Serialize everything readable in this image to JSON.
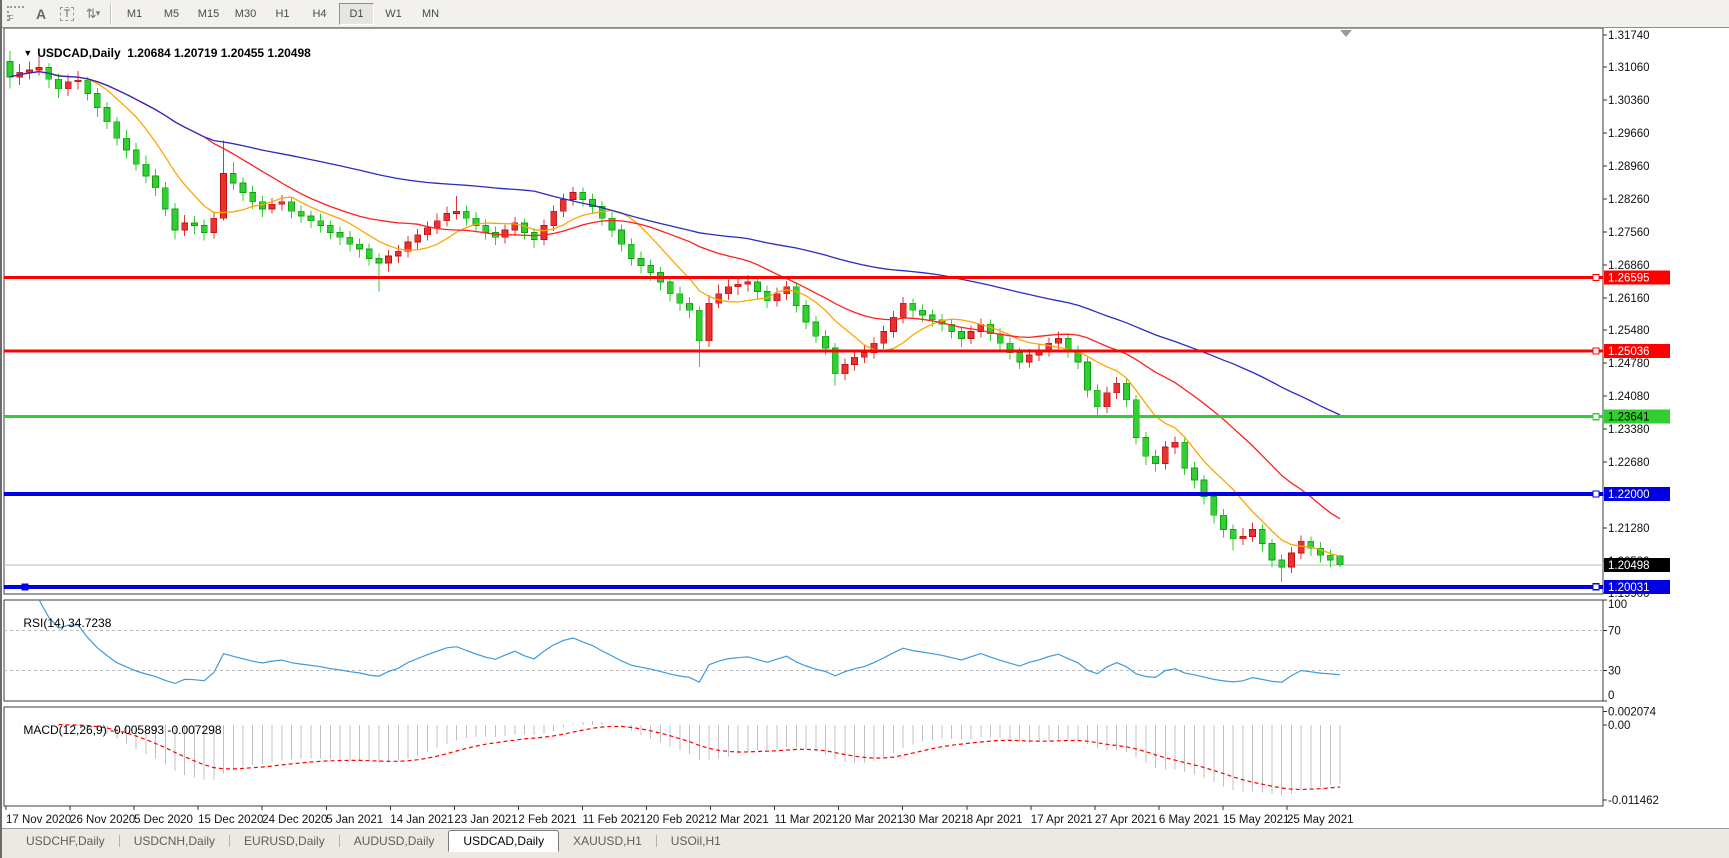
{
  "toolbar": {
    "icons": [
      "dotted-grid",
      "text-a",
      "text-label",
      "cursor-arrows"
    ],
    "grid_letter": "F",
    "a_letter": "A",
    "t_letter": "T",
    "arrows_glyph": "⇅",
    "caret_glyph": "▾",
    "timeframes": [
      "M1",
      "M5",
      "M15",
      "M30",
      "H1",
      "H4",
      "D1",
      "W1",
      "MN"
    ],
    "active_timeframe": "D1"
  },
  "header": {
    "dropdown_glyph": "▼",
    "symbol": "USDCAD,Daily",
    "ohlc": "1.20684 1.20719 1.20455 1.20498"
  },
  "rsi_panel": {
    "label_name": "RSI(14)",
    "label_value": "34.7238",
    "ticks": [
      100,
      70,
      30,
      0
    ],
    "levels": [
      70,
      30
    ],
    "line_color": "#3e9bdc"
  },
  "macd_panel": {
    "label_name": "MACD(12,26,9)",
    "label_values": "-0.005893 -0.007298",
    "ticks": [
      {
        "label": "0.002074",
        "value": 0.002074
      },
      {
        "label": "0.00",
        "value": 0.0
      },
      {
        "label": "-0.011462",
        "value": -0.011462
      }
    ],
    "histogram_color": "#c0c0c0",
    "signal_color": "#ff0000"
  },
  "price_axis": {
    "ticks": [
      "1.31740",
      "1.31060",
      "1.30360",
      "1.29660",
      "1.28960",
      "1.28260",
      "1.27560",
      "1.26860",
      "1.26160",
      "1.25480",
      "1.24780",
      "1.24080",
      "1.23380",
      "1.22680",
      "1.21980",
      "1.21280",
      "1.20580",
      "1.19900"
    ]
  },
  "time_axis": {
    "labels": [
      "17 Nov 2020",
      "26 Nov 2020",
      "5 Dec 2020",
      "15 Dec 2020",
      "24 Dec 2020",
      "5 Jan 2021",
      "14 Jan 2021",
      "23 Jan 2021",
      "2 Feb 2021",
      "11 Feb 2021",
      "20 Feb 2021",
      "2 Mar 2021",
      "11 Mar 2021",
      "20 Mar 2021",
      "30 Mar 2021",
      "8 Apr 2021",
      "17 Apr 2021",
      "27 Apr 2021",
      "6 May 2021",
      "15 May 2021",
      "25 May 2021"
    ]
  },
  "tabs": {
    "items": [
      "USDCHF,Daily",
      "USDCNH,Daily",
      "EURUSD,Daily",
      "AUDUSD,Daily",
      "USDCAD,Daily",
      "XAUUSD,H1",
      "USOil,H1"
    ],
    "active_index": 4
  },
  "chart_data": {
    "type": "candlestick",
    "symbol": "USDCAD",
    "timeframe": "Daily",
    "current_ohlc": {
      "open": 1.20684,
      "high": 1.20719,
      "low": 1.20455,
      "close": 1.20498
    },
    "y_axis": {
      "max": 1.3174,
      "min": 1.199,
      "tick_step": 0.007
    },
    "colors": {
      "bull_up": "#e63232",
      "bear_down": "#33ce33",
      "bull_stroke": "#c01010",
      "bear_stroke": "#0fa00f"
    },
    "moving_averages": [
      {
        "name": "ma-fast",
        "type": "sma",
        "period": 8,
        "color": "#ffa500"
      },
      {
        "name": "ma-mid",
        "type": "sma",
        "period": 21,
        "color": "#ff2020"
      },
      {
        "name": "ma-slow",
        "type": "sma",
        "period": 55,
        "color": "#2b2bc0"
      }
    ],
    "horizontal_lines": [
      {
        "label": "1.26595",
        "price": 1.26595,
        "color": "#ff0000",
        "width": 3,
        "text_color": "#ffffff"
      },
      {
        "label": "1.25036",
        "price": 1.25036,
        "color": "#ff0000",
        "width": 3,
        "text_color": "#ffffff"
      },
      {
        "label": "1.23641",
        "price": 1.23641,
        "color": "#32cd32",
        "width": 3,
        "text_color": "#000000"
      },
      {
        "label": "1.22000",
        "price": 1.22,
        "color": "#0000e0",
        "width": 4,
        "text_color": "#ffffff"
      },
      {
        "label": "1.20031",
        "price": 1.20031,
        "color": "#0000e0",
        "width": 4,
        "text_color": "#ffffff",
        "left_anchor": true
      }
    ],
    "bid_line": {
      "label": "1.20498",
      "price": 1.20498,
      "line_color": "#b8b8b8",
      "chip_bg": "#000000",
      "text_color": "#ffffff"
    },
    "rsi": {
      "period": 14,
      "current": 34.7238
    },
    "macd": {
      "fast": 12,
      "slow": 26,
      "signal": 9,
      "main": -0.005893,
      "signal_value": -0.007298
    },
    "candles": [
      [
        1.3118,
        1.314,
        1.306,
        1.3085
      ],
      [
        1.3085,
        1.3112,
        1.3068,
        1.3095
      ],
      [
        1.3095,
        1.3118,
        1.308,
        1.31
      ],
      [
        1.31,
        1.3128,
        1.3088,
        1.3105
      ],
      [
        1.3105,
        1.3115,
        1.3062,
        1.308
      ],
      [
        1.308,
        1.3092,
        1.304,
        1.306
      ],
      [
        1.306,
        1.309,
        1.3045,
        1.3075
      ],
      [
        1.3075,
        1.3098,
        1.3058,
        1.3078
      ],
      [
        1.3078,
        1.3085,
        1.3035,
        1.305
      ],
      [
        1.305,
        1.3062,
        1.3,
        1.302
      ],
      [
        1.302,
        1.3032,
        1.2975,
        1.299
      ],
      [
        1.299,
        1.3,
        1.294,
        1.2955
      ],
      [
        1.2955,
        1.2972,
        1.2912,
        1.293
      ],
      [
        1.293,
        1.2945,
        1.2885,
        1.29
      ],
      [
        1.29,
        1.2918,
        1.286,
        1.2875
      ],
      [
        1.2875,
        1.289,
        1.2832,
        1.285
      ],
      [
        1.285,
        1.2862,
        1.279,
        1.2805
      ],
      [
        1.2805,
        1.2818,
        1.274,
        1.276
      ],
      [
        1.276,
        1.2792,
        1.2748,
        1.2775
      ],
      [
        1.2775,
        1.279,
        1.2752,
        1.277
      ],
      [
        1.277,
        1.2782,
        1.2738,
        1.2755
      ],
      [
        1.2755,
        1.28,
        1.2742,
        1.2785
      ],
      [
        1.2785,
        1.295,
        1.278,
        1.288
      ],
      [
        1.288,
        1.2905,
        1.2845,
        1.286
      ],
      [
        1.286,
        1.2872,
        1.2822,
        1.284
      ],
      [
        1.284,
        1.2855,
        1.2805,
        1.282
      ],
      [
        1.282,
        1.2832,
        1.2788,
        1.2805
      ],
      [
        1.2805,
        1.2828,
        1.2795,
        1.2815
      ],
      [
        1.2815,
        1.2835,
        1.2802,
        1.282
      ],
      [
        1.282,
        1.283,
        1.2785,
        1.28
      ],
      [
        1.28,
        1.2812,
        1.2775,
        1.279
      ],
      [
        1.279,
        1.2802,
        1.2765,
        1.278
      ],
      [
        1.278,
        1.2795,
        1.2755,
        1.277
      ],
      [
        1.277,
        1.278,
        1.274,
        1.2755
      ],
      [
        1.2755,
        1.2768,
        1.2728,
        1.2745
      ],
      [
        1.2745,
        1.2758,
        1.2715,
        1.273
      ],
      [
        1.273,
        1.2742,
        1.2702,
        1.272
      ],
      [
        1.272,
        1.2732,
        1.2685,
        1.27
      ],
      [
        1.27,
        1.271,
        1.263,
        1.269
      ],
      [
        1.269,
        1.2718,
        1.2672,
        1.2705
      ],
      [
        1.2705,
        1.2728,
        1.269,
        1.2715
      ],
      [
        1.2715,
        1.2748,
        1.2702,
        1.2735
      ],
      [
        1.2735,
        1.2762,
        1.272,
        1.275
      ],
      [
        1.275,
        1.2778,
        1.2738,
        1.2765
      ],
      [
        1.2765,
        1.2795,
        1.2752,
        1.278
      ],
      [
        1.278,
        1.281,
        1.2768,
        1.2795
      ],
      [
        1.2795,
        1.2832,
        1.2782,
        1.28
      ],
      [
        1.28,
        1.2812,
        1.277,
        1.2785
      ],
      [
        1.2785,
        1.2798,
        1.2755,
        1.277
      ],
      [
        1.277,
        1.2782,
        1.274,
        1.2755
      ],
      [
        1.2755,
        1.2768,
        1.2728,
        1.2745
      ],
      [
        1.2745,
        1.2772,
        1.2732,
        1.276
      ],
      [
        1.276,
        1.2788,
        1.2748,
        1.2775
      ],
      [
        1.2775,
        1.2785,
        1.274,
        1.2755
      ],
      [
        1.2755,
        1.2765,
        1.2722,
        1.274
      ],
      [
        1.274,
        1.2782,
        1.2728,
        1.277
      ],
      [
        1.277,
        1.2812,
        1.2758,
        1.28
      ],
      [
        1.28,
        1.2838,
        1.2788,
        1.2825
      ],
      [
        1.2825,
        1.2852,
        1.2812,
        1.284
      ],
      [
        1.284,
        1.285,
        1.281,
        1.2825
      ],
      [
        1.2825,
        1.2838,
        1.2795,
        1.281
      ],
      [
        1.281,
        1.2822,
        1.277,
        1.2785
      ],
      [
        1.2785,
        1.2798,
        1.2745,
        1.276
      ],
      [
        1.276,
        1.2772,
        1.2715,
        1.273
      ],
      [
        1.273,
        1.2742,
        1.2685,
        1.27
      ],
      [
        1.27,
        1.2715,
        1.2668,
        1.2685
      ],
      [
        1.2685,
        1.2698,
        1.2652,
        1.267
      ],
      [
        1.267,
        1.2682,
        1.2632,
        1.265
      ],
      [
        1.265,
        1.2662,
        1.2608,
        1.2625
      ],
      [
        1.2625,
        1.264,
        1.2588,
        1.2605
      ],
      [
        1.2605,
        1.2618,
        1.2572,
        1.259
      ],
      [
        1.259,
        1.2598,
        1.247,
        1.2525
      ],
      [
        1.2525,
        1.2622,
        1.2512,
        1.2605
      ],
      [
        1.2605,
        1.2645,
        1.2595,
        1.2625
      ],
      [
        1.2625,
        1.2655,
        1.2612,
        1.264
      ],
      [
        1.264,
        1.2658,
        1.2622,
        1.2645
      ],
      [
        1.2645,
        1.2665,
        1.263,
        1.265
      ],
      [
        1.265,
        1.266,
        1.2615,
        1.263
      ],
      [
        1.263,
        1.2642,
        1.2595,
        1.261
      ],
      [
        1.261,
        1.2638,
        1.2598,
        1.2625
      ],
      [
        1.2625,
        1.2652,
        1.2612,
        1.264
      ],
      [
        1.264,
        1.265,
        1.2585,
        1.26
      ],
      [
        1.26,
        1.2612,
        1.255,
        1.2565
      ],
      [
        1.2565,
        1.2578,
        1.252,
        1.2535
      ],
      [
        1.2535,
        1.2548,
        1.2495,
        1.251
      ],
      [
        1.251,
        1.252,
        1.243,
        1.2455
      ],
      [
        1.2455,
        1.2488,
        1.2442,
        1.2475
      ],
      [
        1.2475,
        1.2502,
        1.2462,
        1.249
      ],
      [
        1.249,
        1.2515,
        1.2478,
        1.25
      ],
      [
        1.25,
        1.2532,
        1.2488,
        1.252
      ],
      [
        1.252,
        1.2558,
        1.2508,
        1.2545
      ],
      [
        1.2545,
        1.2588,
        1.2532,
        1.2575
      ],
      [
        1.2575,
        1.2618,
        1.2562,
        1.2605
      ],
      [
        1.2605,
        1.2615,
        1.2575,
        1.259
      ],
      [
        1.259,
        1.2602,
        1.2565,
        1.258
      ],
      [
        1.258,
        1.2592,
        1.2555,
        1.257
      ],
      [
        1.257,
        1.2582,
        1.2545,
        1.256
      ],
      [
        1.256,
        1.2572,
        1.253,
        1.2545
      ],
      [
        1.2545,
        1.2555,
        1.2512,
        1.253
      ],
      [
        1.253,
        1.2558,
        1.2518,
        1.2545
      ],
      [
        1.2545,
        1.2572,
        1.2532,
        1.256
      ],
      [
        1.256,
        1.257,
        1.2525,
        1.254
      ],
      [
        1.254,
        1.2552,
        1.2505,
        1.252
      ],
      [
        1.252,
        1.2532,
        1.2485,
        1.25
      ],
      [
        1.25,
        1.251,
        1.2465,
        1.248
      ],
      [
        1.248,
        1.2508,
        1.2468,
        1.2495
      ],
      [
        1.2495,
        1.2518,
        1.2482,
        1.2505
      ],
      [
        1.2505,
        1.2532,
        1.2492,
        1.252
      ],
      [
        1.252,
        1.2545,
        1.2508,
        1.253
      ],
      [
        1.253,
        1.254,
        1.249,
        1.2505
      ],
      [
        1.2505,
        1.2515,
        1.2465,
        1.248
      ],
      [
        1.248,
        1.249,
        1.2405,
        1.242
      ],
      [
        1.242,
        1.2432,
        1.2365,
        1.2385
      ],
      [
        1.2385,
        1.2428,
        1.2372,
        1.2415
      ],
      [
        1.2415,
        1.2448,
        1.2402,
        1.2435
      ],
      [
        1.2435,
        1.2445,
        1.2385,
        1.24
      ],
      [
        1.24,
        1.241,
        1.2305,
        1.232
      ],
      [
        1.232,
        1.2332,
        1.2262,
        1.228
      ],
      [
        1.228,
        1.2295,
        1.2248,
        1.2265
      ],
      [
        1.2265,
        1.2312,
        1.2252,
        1.23
      ],
      [
        1.23,
        1.2322,
        1.2285,
        1.231
      ],
      [
        1.231,
        1.2318,
        1.224,
        1.2255
      ],
      [
        1.2255,
        1.2268,
        1.2212,
        1.223
      ],
      [
        1.223,
        1.224,
        1.2178,
        1.2195
      ],
      [
        1.2195,
        1.2205,
        1.2138,
        1.2155
      ],
      [
        1.2155,
        1.2168,
        1.2108,
        1.2125
      ],
      [
        1.2125,
        1.2135,
        1.208,
        1.2105
      ],
      [
        1.2105,
        1.2128,
        1.2092,
        1.211
      ],
      [
        1.211,
        1.214,
        1.2098,
        1.2125
      ],
      [
        1.2125,
        1.2135,
        1.2078,
        1.2095
      ],
      [
        1.2095,
        1.2105,
        1.2045,
        1.206
      ],
      [
        1.206,
        1.2072,
        1.2013,
        1.2045
      ],
      [
        1.2045,
        1.2088,
        1.2032,
        1.2075
      ],
      [
        1.2075,
        1.2112,
        1.2062,
        1.21
      ],
      [
        1.21,
        1.211,
        1.2068,
        1.2085
      ],
      [
        1.2085,
        1.2098,
        1.2055,
        1.207
      ],
      [
        1.207,
        1.2082,
        1.2045,
        1.206
      ],
      [
        1.20684,
        1.20719,
        1.20455,
        1.20498
      ]
    ]
  }
}
